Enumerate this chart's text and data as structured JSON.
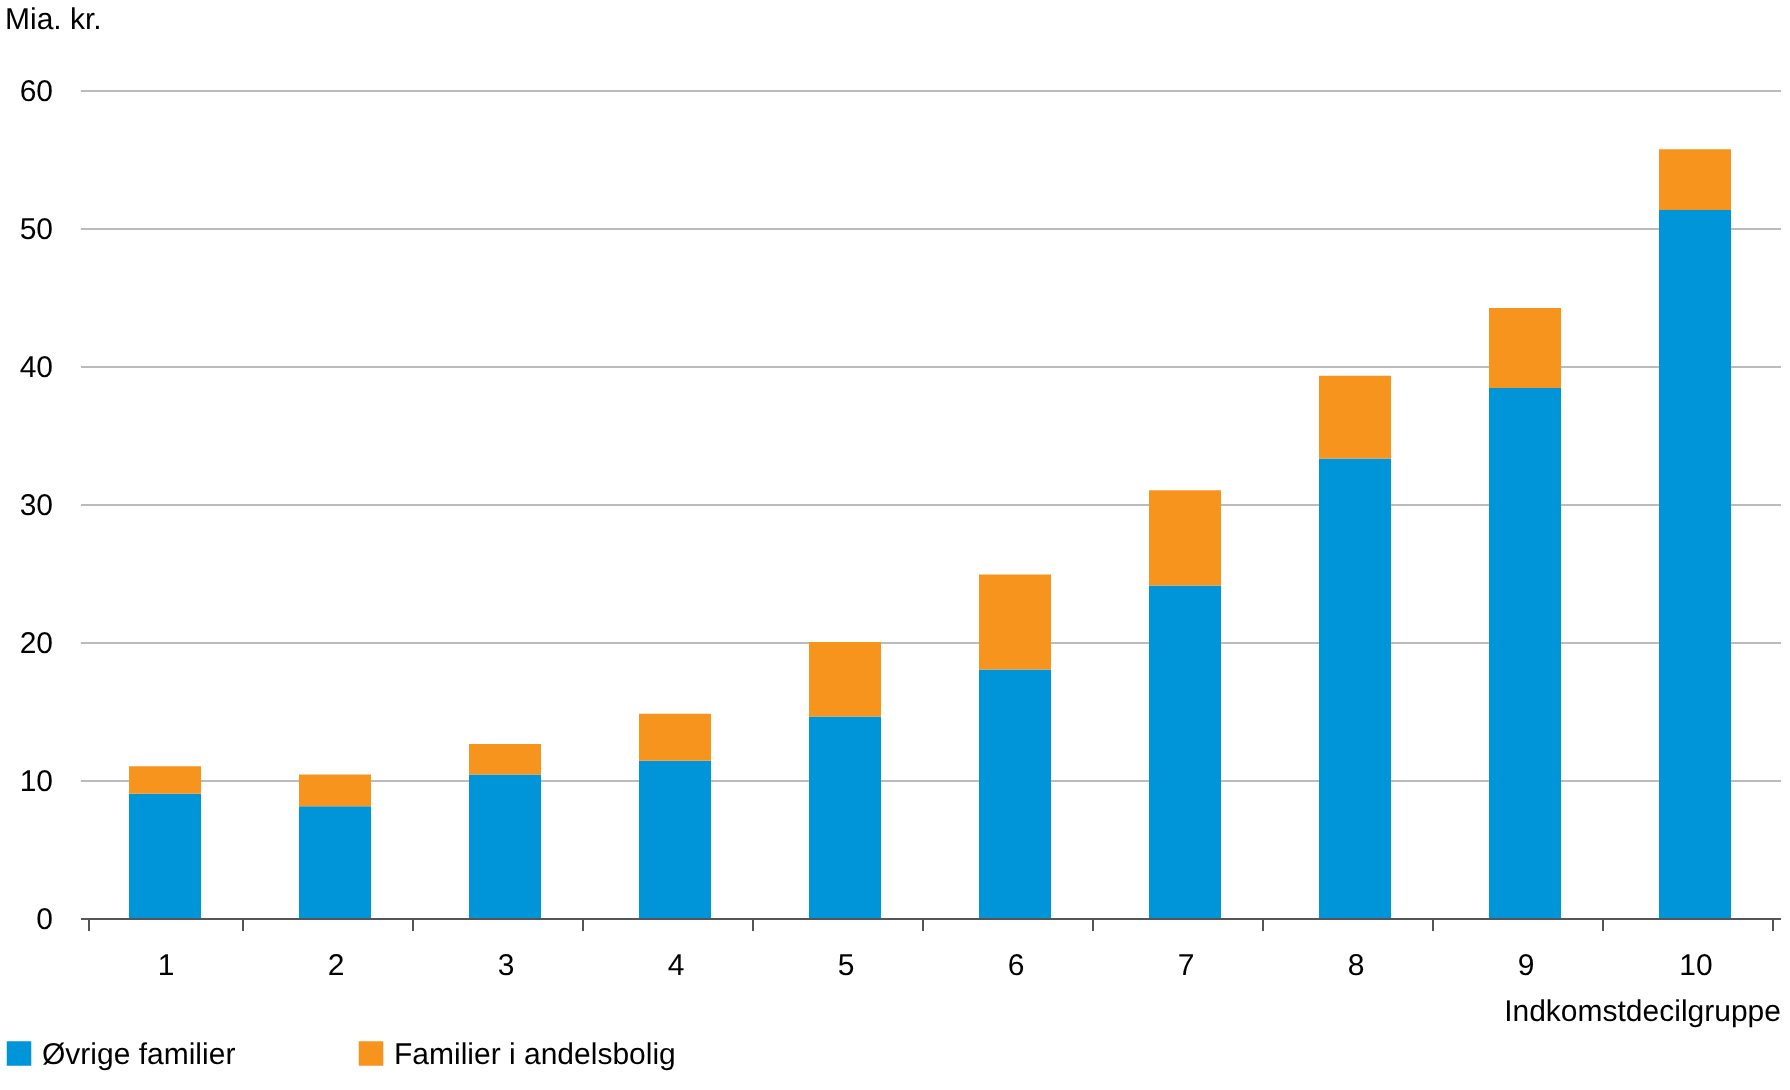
{
  "chart_data": {
    "type": "bar",
    "stacked": true,
    "ylabel": "Mia. kr.",
    "xlabel": "Indkomstdecilgruppe",
    "categories": [
      "1",
      "2",
      "3",
      "4",
      "5",
      "6",
      "7",
      "8",
      "9",
      "10"
    ],
    "series": [
      {
        "name": "Øvrige familier",
        "color": "#0095d9",
        "values": [
          9.0,
          8.1,
          10.4,
          11.4,
          14.6,
          18.0,
          24.1,
          33.3,
          38.4,
          51.3
        ]
      },
      {
        "name": "Familier i andelsbolig",
        "color": "#f7941d",
        "values": [
          2.0,
          2.3,
          2.2,
          3.4,
          5.4,
          6.9,
          6.9,
          6.0,
          5.8,
          4.4
        ]
      }
    ],
    "ylim": [
      0,
      60
    ],
    "yticks": [
      0,
      10,
      20,
      30,
      40,
      50,
      60
    ],
    "grid": "y",
    "legend": "bottom left"
  }
}
